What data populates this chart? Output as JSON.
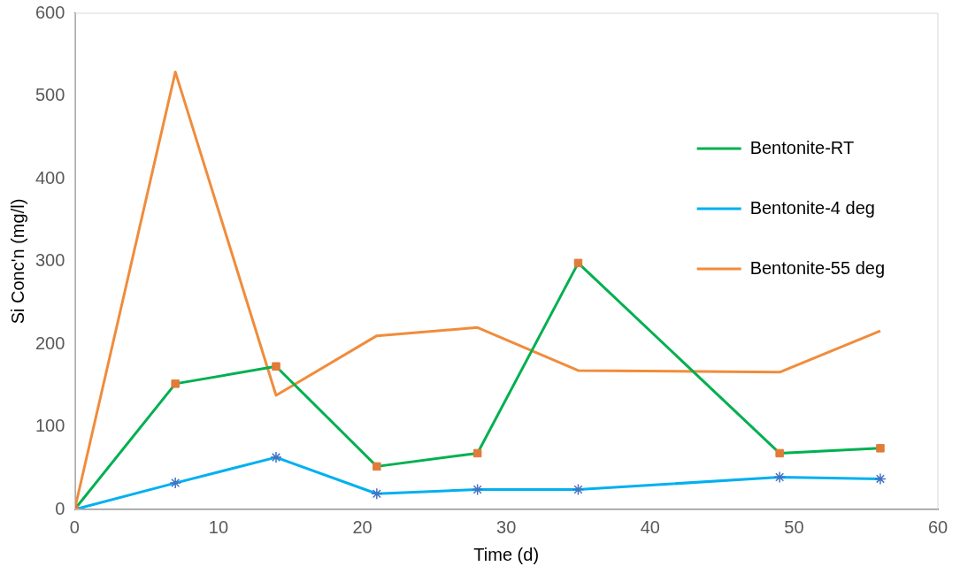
{
  "chart_data": {
    "type": "line",
    "xlabel": "Time (d)",
    "ylabel": "Si Conc'n (mg/l)",
    "x": [
      0,
      7,
      14,
      21,
      28,
      35,
      49,
      56
    ],
    "xlim": [
      0,
      60
    ],
    "xticks": [
      0,
      10,
      20,
      30,
      40,
      50,
      60
    ],
    "ylim": [
      0,
      600
    ],
    "yticks": [
      0,
      100,
      200,
      300,
      400,
      500,
      600
    ],
    "grid": false,
    "legend": "top right",
    "line_style": "solid",
    "series": [
      {
        "name": "Bentonite-RT",
        "color": "#00b050",
        "marker": "square",
        "colors": [
          "#e07b39",
          "#e07b39",
          "#e07b39",
          "#e07b39",
          "#e07b39",
          "#e07b39",
          "#e07b39",
          "#e07b39"
        ],
        "values": [
          0,
          152,
          173,
          52,
          68,
          298,
          68,
          74
        ]
      },
      {
        "name": "Bentonite-4 deg",
        "color": "#00b0f0",
        "marker": "cross",
        "colors": [
          "#4472c4",
          "#4472c4",
          "#4472c4",
          "#4472c4",
          "#4472c4",
          "#4472c4",
          "#4472c4",
          "#4472c4"
        ],
        "values": [
          0,
          32,
          63,
          19,
          24,
          24,
          39,
          37
        ]
      },
      {
        "name": "Bentonite-55 deg",
        "color": "#f08c3c",
        "marker": "none",
        "values": [
          0,
          529,
          138,
          210,
          220,
          168,
          166,
          216
        ]
      }
    ]
  }
}
